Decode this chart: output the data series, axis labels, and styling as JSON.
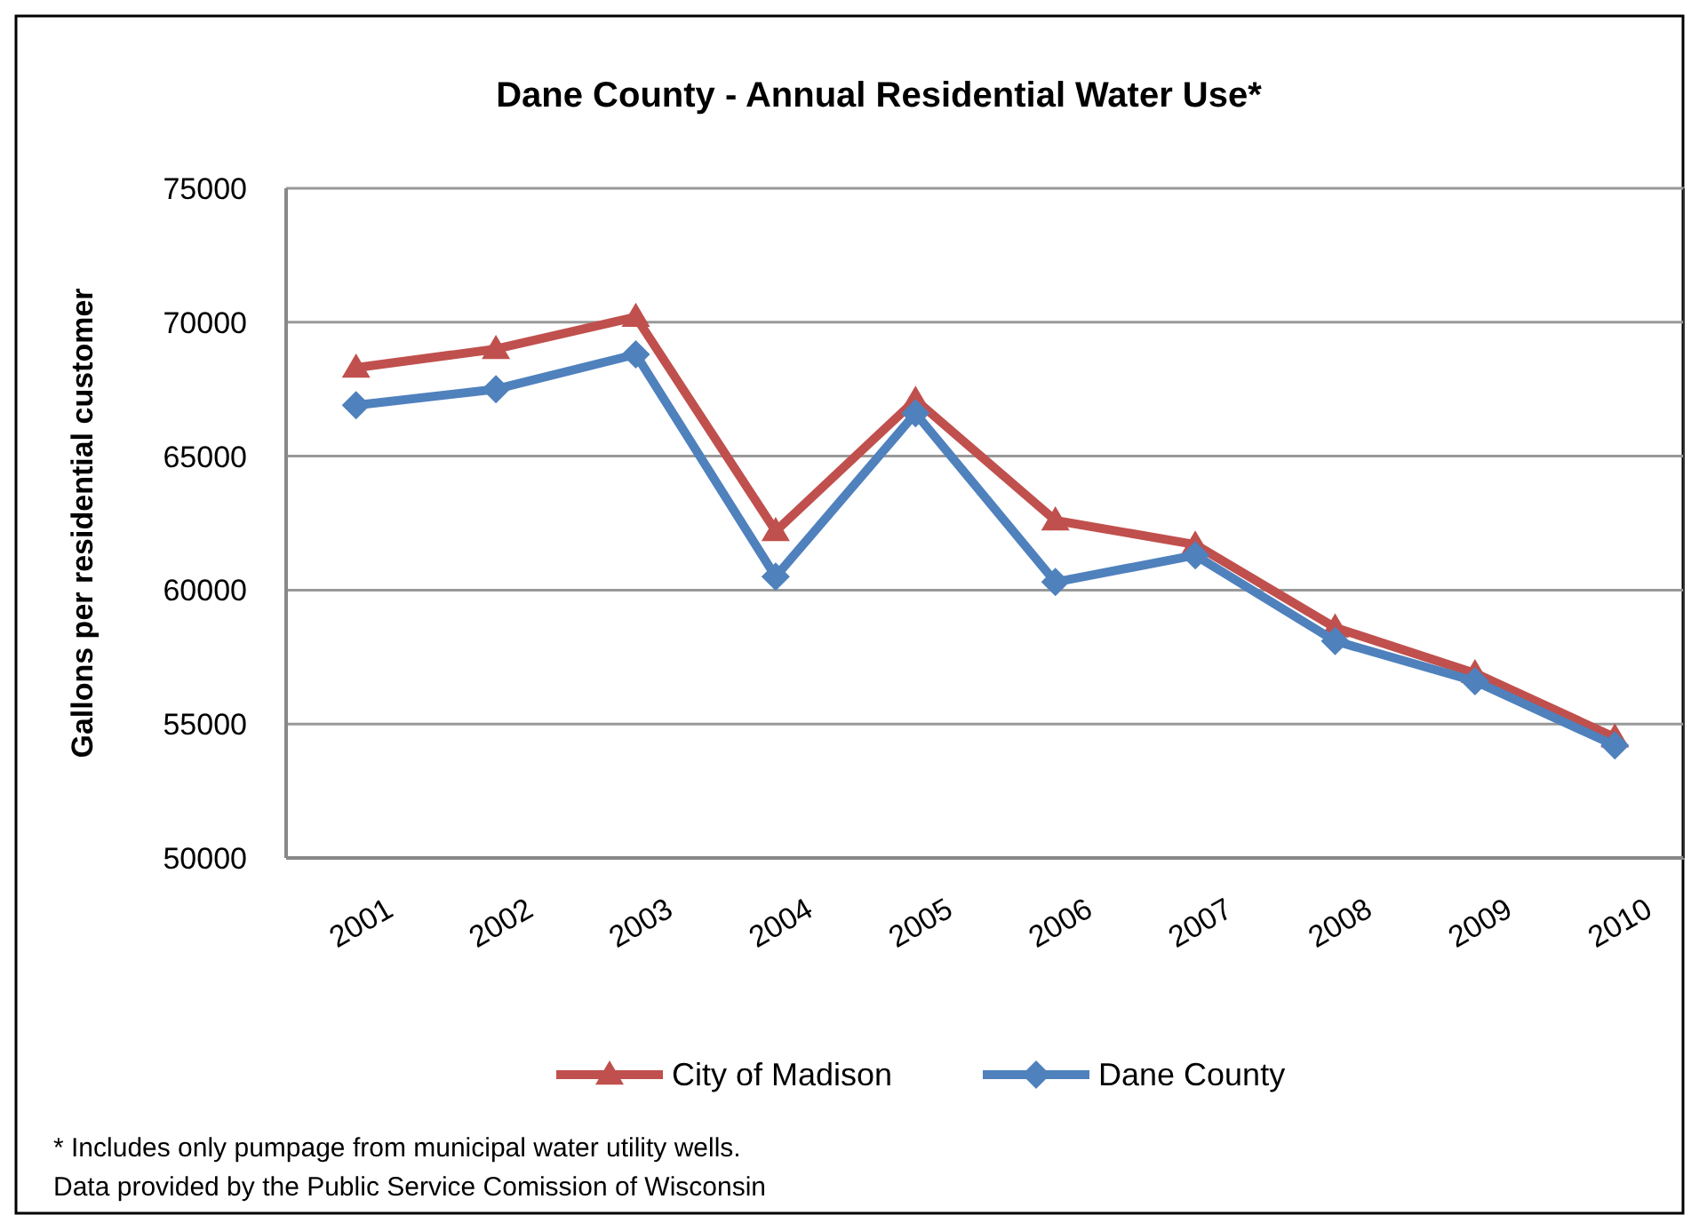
{
  "chart_data": {
    "type": "line",
    "title": "Dane County - Annual Residential Water Use*",
    "ylabel": "Gallons per residential customer",
    "categories": [
      "2001",
      "2002",
      "2003",
      "2004",
      "2005",
      "2006",
      "2007",
      "2008",
      "2009",
      "2010"
    ],
    "series": [
      {
        "name": "City of Madison",
        "color": "#c0504d",
        "marker": "triangle",
        "values": [
          68300,
          69000,
          70200,
          62200,
          67100,
          62600,
          61700,
          58600,
          56900,
          54500
        ]
      },
      {
        "name": "Dane County",
        "color": "#4f81bd",
        "marker": "diamond",
        "values": [
          66900,
          67500,
          68800,
          60500,
          66600,
          60300,
          61300,
          58100,
          56600,
          54200
        ]
      }
    ],
    "ylim": [
      50000,
      75000
    ],
    "yticks": [
      50000,
      55000,
      60000,
      65000,
      70000,
      75000
    ],
    "grid": "y",
    "legend": "bottom",
    "line_style": "solid",
    "annotations": [
      "* Includes only pumpage from municipal water utility wells.",
      "Data provided by the Public Service Comission of Wisconsin"
    ]
  }
}
